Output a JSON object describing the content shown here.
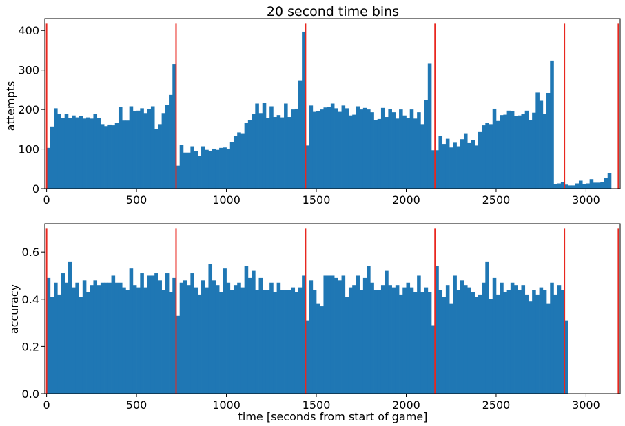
{
  "chart_data": [
    {
      "type": "bar",
      "title": "20 second time bins",
      "xlabel": "",
      "ylabel": "attempts",
      "xlim": [
        -10,
        3190
      ],
      "ylim": [
        0,
        430
      ],
      "xticks": [
        0,
        500,
        1000,
        1500,
        2000,
        2500,
        3000
      ],
      "yticks": [
        0,
        100,
        200,
        300,
        400
      ],
      "bin_width": 20,
      "color": "#1f77b4",
      "vline_color": "#e8271f",
      "vlines": [
        0,
        720,
        1440,
        2160,
        2880,
        3180
      ],
      "values": [
        103,
        157,
        203,
        189,
        178,
        189,
        178,
        185,
        180,
        183,
        177,
        180,
        177,
        189,
        178,
        163,
        158,
        162,
        160,
        166,
        206,
        172,
        172,
        208,
        195,
        197,
        203,
        191,
        201,
        208,
        150,
        163,
        191,
        212,
        237,
        315,
        58,
        110,
        91,
        91,
        107,
        94,
        82,
        107,
        98,
        95,
        101,
        98,
        103,
        104,
        101,
        118,
        133,
        142,
        140,
        167,
        174,
        188,
        215,
        191,
        216,
        178,
        208,
        181,
        186,
        180,
        215,
        181,
        200,
        202,
        274,
        397,
        109,
        210,
        194,
        196,
        200,
        205,
        207,
        215,
        203,
        194,
        210,
        203,
        185,
        187,
        208,
        200,
        204,
        200,
        193,
        173,
        176,
        204,
        181,
        201,
        193,
        177,
        200,
        185,
        178,
        200,
        177,
        193,
        163,
        224,
        316,
        97,
        97,
        133,
        113,
        126,
        104,
        116,
        107,
        125,
        140,
        115,
        123,
        109,
        143,
        160,
        166,
        163,
        202,
        171,
        186,
        187,
        197,
        195,
        184,
        185,
        188,
        197,
        174,
        192,
        243,
        222,
        189,
        242,
        324,
        12,
        13,
        17,
        10,
        8,
        8,
        13,
        20,
        12,
        13,
        24,
        15,
        15,
        17,
        27,
        40
      ]
    },
    {
      "type": "bar",
      "title": "",
      "xlabel": "time [seconds from start of game]",
      "ylabel": "accuracy",
      "xlim": [
        -10,
        3190
      ],
      "ylim": [
        0,
        0.72
      ],
      "xticks": [
        0,
        500,
        1000,
        1500,
        2000,
        2500,
        3000
      ],
      "yticks": [
        0.0,
        0.2,
        0.4,
        0.6
      ],
      "bin_width": 20,
      "color": "#1f77b4",
      "vline_color": "#e8271f",
      "vlines": [
        0,
        720,
        1440,
        2160,
        2880,
        3180
      ],
      "values": [
        0.49,
        0.41,
        0.47,
        0.42,
        0.51,
        0.47,
        0.56,
        0.45,
        0.47,
        0.41,
        0.48,
        0.43,
        0.46,
        0.48,
        0.46,
        0.47,
        0.47,
        0.47,
        0.5,
        0.47,
        0.47,
        0.45,
        0.44,
        0.53,
        0.46,
        0.45,
        0.51,
        0.45,
        0.5,
        0.5,
        0.51,
        0.48,
        0.44,
        0.51,
        0.43,
        0.49,
        0.33,
        0.47,
        0.48,
        0.46,
        0.51,
        0.45,
        0.42,
        0.48,
        0.45,
        0.55,
        0.48,
        0.46,
        0.43,
        0.53,
        0.47,
        0.44,
        0.46,
        0.47,
        0.45,
        0.54,
        0.49,
        0.52,
        0.44,
        0.49,
        0.44,
        0.44,
        0.47,
        0.43,
        0.47,
        0.44,
        0.44,
        0.44,
        0.45,
        0.43,
        0.45,
        0.5,
        0.31,
        0.48,
        0.44,
        0.38,
        0.37,
        0.5,
        0.5,
        0.5,
        0.49,
        0.48,
        0.5,
        0.41,
        0.45,
        0.46,
        0.5,
        0.44,
        0.49,
        0.54,
        0.47,
        0.44,
        0.44,
        0.46,
        0.52,
        0.46,
        0.45,
        0.46,
        0.42,
        0.45,
        0.47,
        0.45,
        0.43,
        0.5,
        0.43,
        0.45,
        0.43,
        0.29,
        0.54,
        0.44,
        0.41,
        0.46,
        0.38,
        0.5,
        0.44,
        0.48,
        0.46,
        0.45,
        0.43,
        0.41,
        0.42,
        0.47,
        0.56,
        0.4,
        0.49,
        0.42,
        0.47,
        0.43,
        0.44,
        0.47,
        0.46,
        0.44,
        0.46,
        0.42,
        0.39,
        0.44,
        0.42,
        0.45,
        0.44,
        0.38,
        0.47,
        0.42,
        0.46,
        0.44,
        0.31
      ]
    }
  ]
}
